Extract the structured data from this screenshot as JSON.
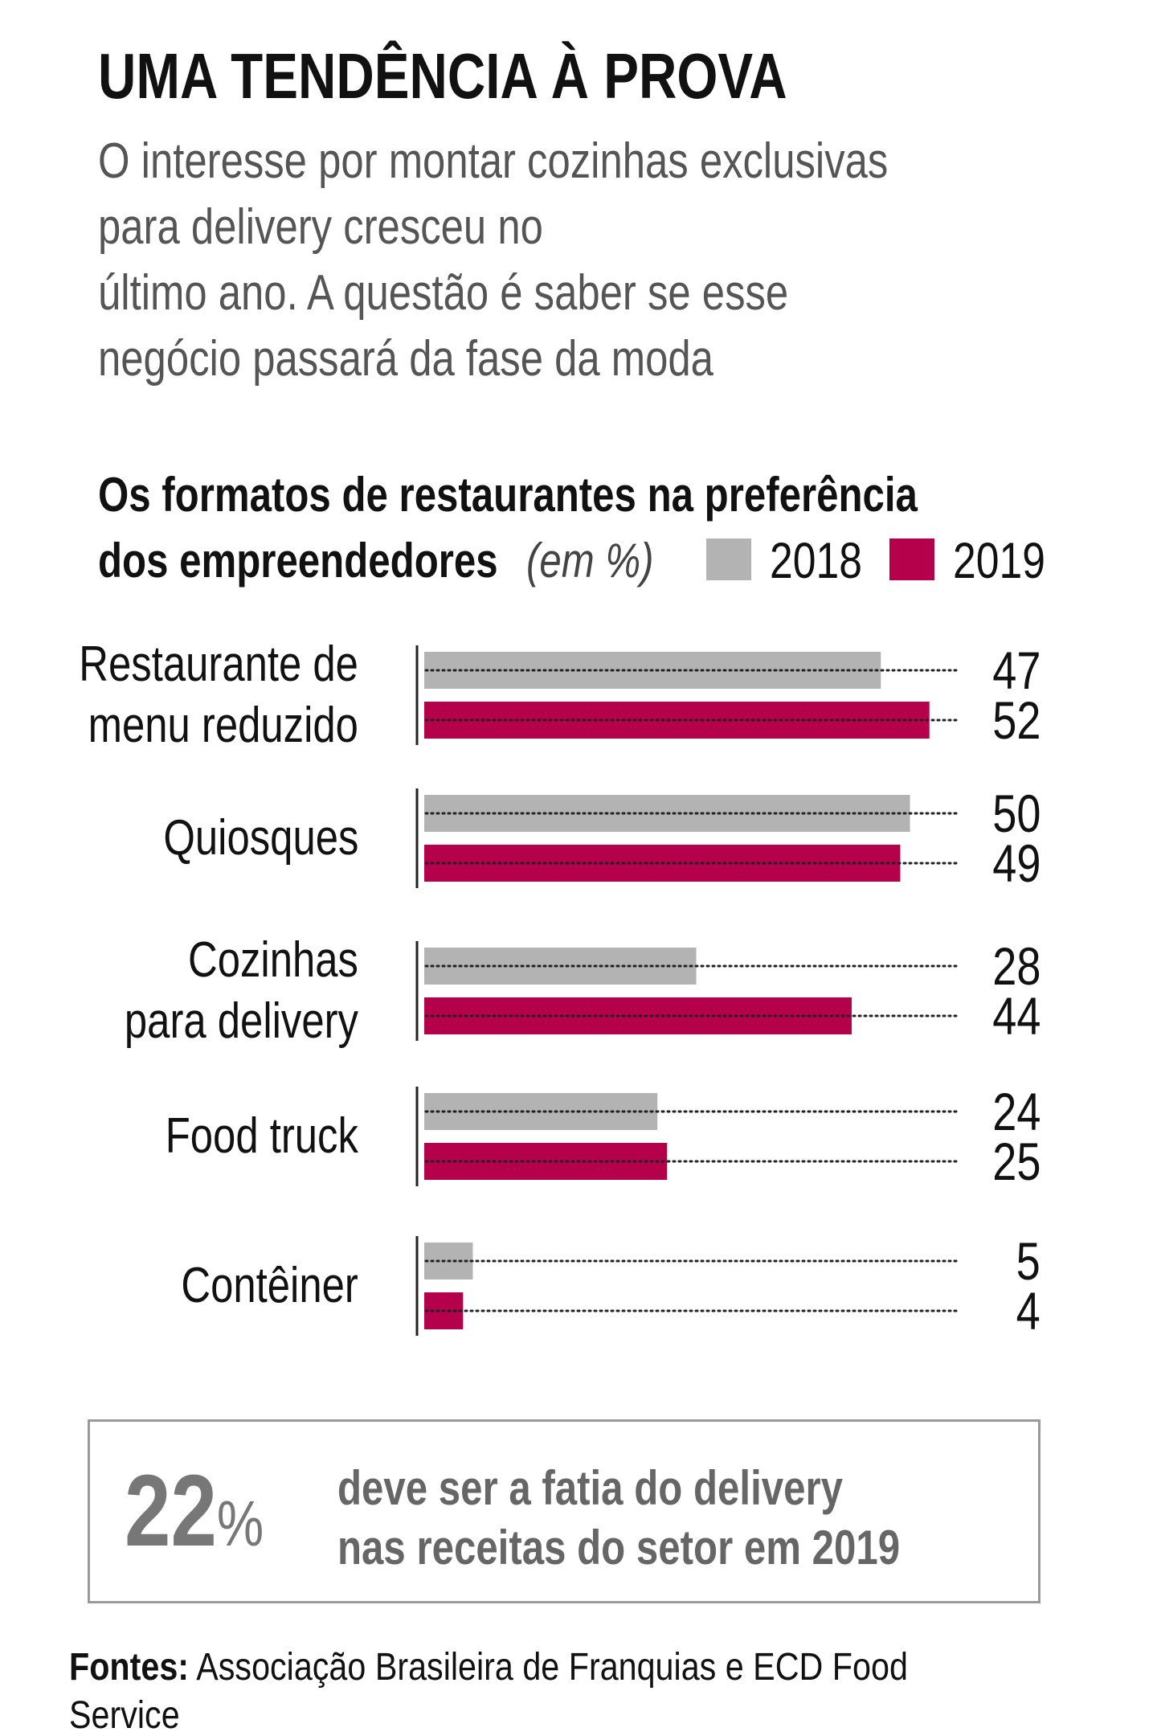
{
  "header": {
    "title": "UMA TENDÊNCIA À PROVA",
    "subtitle": "O interesse por montar cozinhas exclusivas\npara delivery cresceu no\núltimo ano. A questão é saber se esse\nnegócio passará da fase da moda"
  },
  "chart_data": {
    "type": "bar",
    "orientation": "horizontal",
    "title": "Os formatos de restaurantes na preferência\ndos empreendedores",
    "unit": "(em %)",
    "categories": [
      "Restaurante de\nmenu reduzido",
      "Quiosques",
      "Cozinhas\npara delivery",
      "Food truck",
      "Contêiner"
    ],
    "series": [
      {
        "name": "2018",
        "color": "#b3b3b3",
        "values": [
          47,
          50,
          28,
          24,
          5
        ]
      },
      {
        "name": "2019",
        "color": "#b5004b",
        "values": [
          52,
          49,
          44,
          25,
          4
        ]
      }
    ],
    "xlim": [
      0,
      55
    ]
  },
  "callout": {
    "figure": "22",
    "unit": "%",
    "text": "deve ser a fatia do delivery\nnas receitas do setor em 2019"
  },
  "footer": {
    "label": "Fontes:",
    "text": "Associação Brasileira de Franquias e ECD Food Service"
  }
}
